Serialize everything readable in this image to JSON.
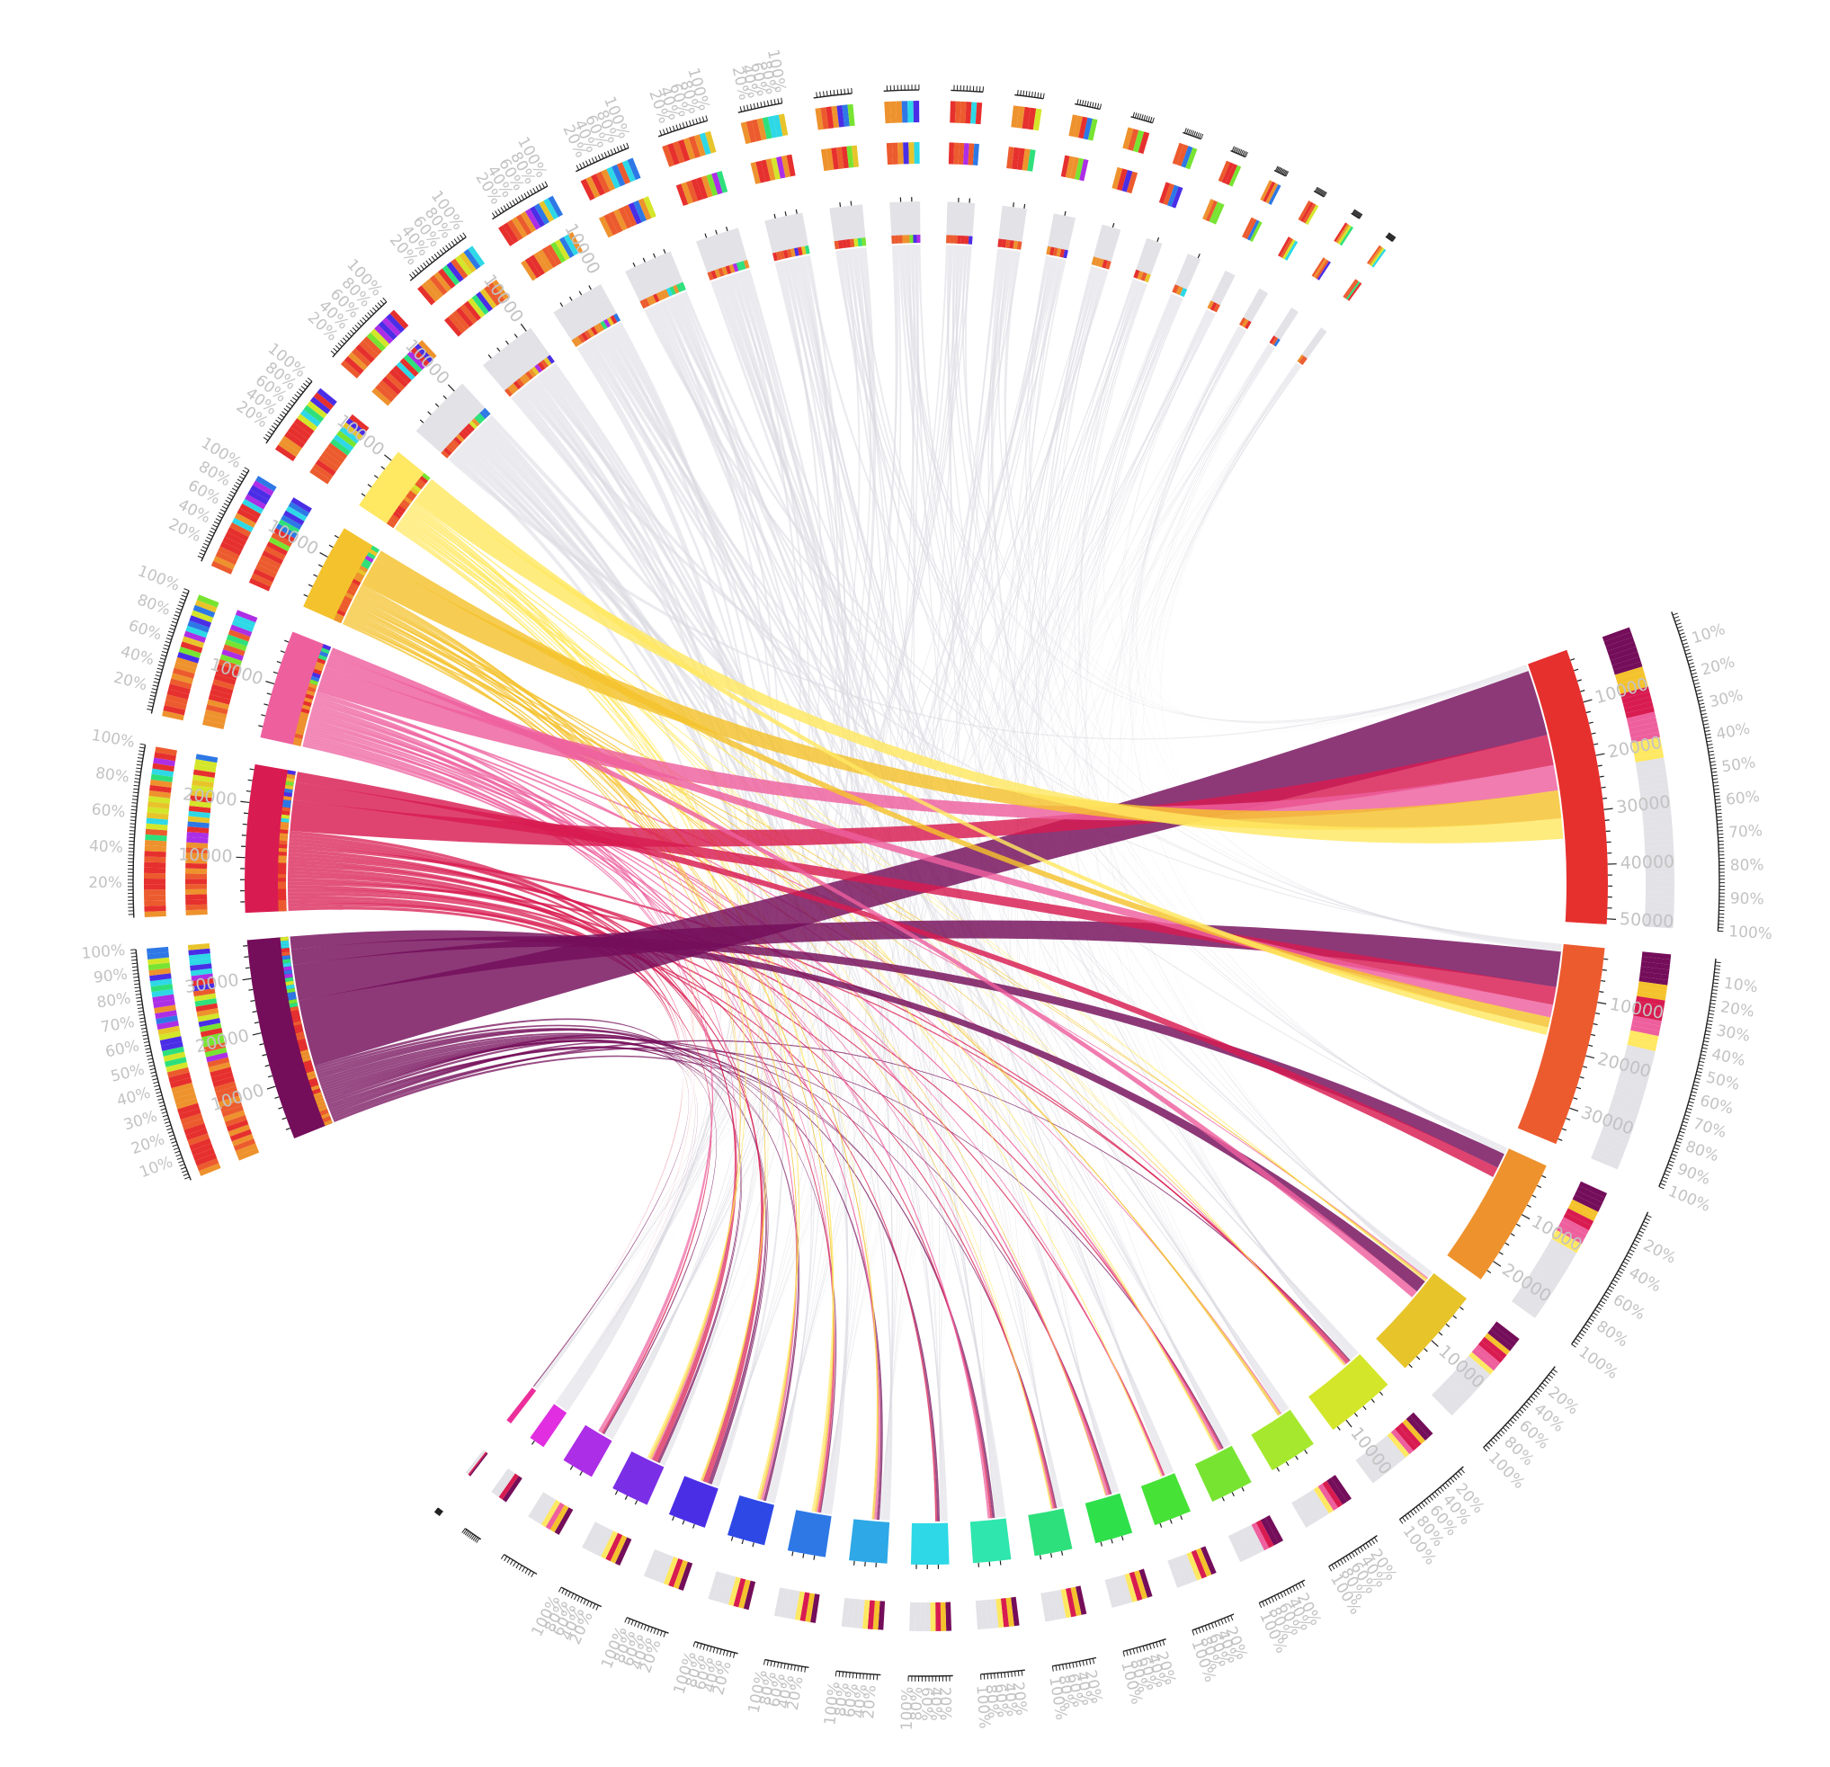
{
  "chart_data": {
    "type": "chord",
    "title": "",
    "colors": {
      "background": "#ffffff",
      "neutral_sector": "#e2e2e7",
      "neutral_ribbon": "#dadae2",
      "tick_label": "#c3c3c3"
    },
    "target_sectors": [
      {
        "id": "T1",
        "size": 51000,
        "color": "#e6302e",
        "tick_labels": [
          "10000",
          "20000",
          "30000",
          "40000",
          "50000"
        ],
        "ticks": [
          10000,
          20000,
          30000,
          40000,
          50000
        ]
      },
      {
        "id": "T2",
        "size": 37000,
        "color": "#ec5b2e",
        "tick_labels": [
          "10000",
          "20000",
          "30000"
        ],
        "ticks": [
          10000,
          20000,
          30000
        ]
      },
      {
        "id": "T3",
        "size": 24000,
        "color": "#ee922d",
        "tick_labels": [
          "10000",
          "20000"
        ],
        "ticks": [
          10000,
          20000
        ]
      },
      {
        "id": "T4",
        "size": 17000,
        "color": "#e8c42b",
        "tick_labels": [
          "10000"
        ],
        "ticks": [
          10000
        ]
      },
      {
        "id": "T5",
        "size": 13000,
        "color": "#d4e62a",
        "tick_labels": [
          "10000"
        ],
        "ticks": [
          10000
        ]
      },
      {
        "id": "T6",
        "size": 9000,
        "color": "#a6e82e",
        "tick_labels": [],
        "ticks": []
      },
      {
        "id": "T7",
        "size": 8000,
        "color": "#78e432",
        "tick_labels": [],
        "ticks": []
      },
      {
        "id": "T8",
        "size": 7000,
        "color": "#46e236",
        "tick_labels": [],
        "ticks": []
      },
      {
        "id": "T9",
        "size": 7000,
        "color": "#2ee04a",
        "tick_labels": [],
        "ticks": []
      },
      {
        "id": "T10",
        "size": 7000,
        "color": "#2ee07c",
        "tick_labels": [],
        "ticks": []
      },
      {
        "id": "T11",
        "size": 7000,
        "color": "#2ee6ae",
        "tick_labels": [],
        "ticks": []
      },
      {
        "id": "T12",
        "size": 7000,
        "color": "#2ed8e6",
        "tick_labels": [],
        "ticks": []
      },
      {
        "id": "T13",
        "size": 7000,
        "color": "#2ea8e6",
        "tick_labels": [],
        "ticks": []
      },
      {
        "id": "T14",
        "size": 7000,
        "color": "#2e78e6",
        "tick_labels": [],
        "ticks": []
      },
      {
        "id": "T15",
        "size": 7000,
        "color": "#2e48e6",
        "tick_labels": [],
        "ticks": []
      },
      {
        "id": "T16",
        "size": 7000,
        "color": "#4a2ee6",
        "tick_labels": [],
        "ticks": []
      },
      {
        "id": "T17",
        "size": 7000,
        "color": "#7a2ee6",
        "tick_labels": [],
        "ticks": []
      },
      {
        "id": "T18",
        "size": 6000,
        "color": "#ac2ee6",
        "tick_labels": [],
        "ticks": []
      },
      {
        "id": "T19",
        "size": 3000,
        "color": "#e02ee0",
        "tick_labels": [],
        "ticks": []
      },
      {
        "id": "T20",
        "size": 1000,
        "color": "#ec2e9a",
        "tick_labels": [],
        "ticks": []
      }
    ],
    "source_sectors": [
      {
        "id": "S1",
        "size": 37000,
        "color": "#740d5a",
        "tick_labels": [
          "10000",
          "20000",
          "30000"
        ],
        "ticks": [
          10000,
          20000,
          30000
        ]
      },
      {
        "id": "S2",
        "size": 27000,
        "color": "#d81b50",
        "tick_labels": [
          "10000",
          "20000"
        ],
        "ticks": [
          10000,
          20000
        ]
      },
      {
        "id": "S3",
        "size": 20000,
        "color": "#ee5f9d",
        "tick_labels": [
          "10000"
        ],
        "ticks": [
          10000
        ]
      },
      {
        "id": "S4",
        "size": 16000,
        "color": "#f4c22c",
        "tick_labels": [
          "10000"
        ],
        "ticks": [
          10000
        ]
      },
      {
        "id": "S5",
        "size": 12000,
        "color": "#ffe862",
        "tick_labels": [
          "10000"
        ],
        "ticks": [
          10000
        ]
      },
      {
        "id": "S6",
        "size": 12000,
        "color": "#e2e2e7",
        "tick_labels": [
          "10000"
        ],
        "ticks": [
          10000
        ]
      },
      {
        "id": "S7",
        "size": 11000,
        "color": "#e2e2e7",
        "tick_labels": [
          "10000"
        ],
        "ticks": [
          10000
        ]
      },
      {
        "id": "S8",
        "size": 10000,
        "color": "#e2e2e7",
        "tick_labels": [
          "10000"
        ],
        "ticks": [
          10000
        ]
      },
      {
        "id": "S9",
        "size": 9000,
        "color": "#e2e2e7",
        "tick_labels": [],
        "ticks": []
      },
      {
        "id": "S10",
        "size": 8000,
        "color": "#e2e2e7",
        "tick_labels": [],
        "ticks": []
      },
      {
        "id": "S11",
        "size": 7000,
        "color": "#e2e2e7",
        "tick_labels": [],
        "ticks": []
      },
      {
        "id": "S12",
        "size": 6000,
        "color": "#e2e2e7",
        "tick_labels": [],
        "ticks": []
      },
      {
        "id": "S13",
        "size": 5500,
        "color": "#e2e2e7",
        "tick_labels": [],
        "ticks": []
      },
      {
        "id": "S14",
        "size": 5000,
        "color": "#e2e2e7",
        "tick_labels": [],
        "ticks": []
      },
      {
        "id": "S15",
        "size": 4500,
        "color": "#e2e2e7",
        "tick_labels": [],
        "ticks": []
      },
      {
        "id": "S16",
        "size": 4000,
        "color": "#e2e2e7",
        "tick_labels": [],
        "ticks": []
      },
      {
        "id": "S17",
        "size": 3500,
        "color": "#e2e2e7",
        "tick_labels": [],
        "ticks": []
      },
      {
        "id": "S18",
        "size": 3000,
        "color": "#e2e2e7",
        "tick_labels": [],
        "ticks": []
      },
      {
        "id": "S19",
        "size": 2500,
        "color": "#e2e2e7",
        "tick_labels": [],
        "ticks": []
      },
      {
        "id": "S20",
        "size": 2000,
        "color": "#e2e2e7",
        "tick_labels": [],
        "ticks": []
      },
      {
        "id": "S21",
        "size": 1800,
        "color": "#e2e2e7",
        "tick_labels": [],
        "ticks": []
      },
      {
        "id": "S22",
        "size": 1500,
        "color": "#e2e2e7",
        "tick_labels": [],
        "ticks": []
      },
      {
        "id": "S23",
        "size": 1300,
        "color": "#e2e2e7",
        "tick_labels": [],
        "ticks": []
      }
    ],
    "major_links": [
      {
        "source": "S1",
        "target": "T1",
        "value": 13000
      },
      {
        "source": "S1",
        "target": "T2",
        "value": 7000
      },
      {
        "source": "S1",
        "target": "T3",
        "value": 3000
      },
      {
        "source": "S1",
        "target": "T4",
        "value": 2500
      },
      {
        "source": "S2",
        "target": "T1",
        "value": 6000
      },
      {
        "source": "S2",
        "target": "T2",
        "value": 3500
      },
      {
        "source": "S2",
        "target": "T3",
        "value": 2000
      },
      {
        "source": "S3",
        "target": "T1",
        "value": 5000
      },
      {
        "source": "S3",
        "target": "T2",
        "value": 2500
      },
      {
        "source": "S3",
        "target": "T4",
        "value": 1500
      },
      {
        "source": "S4",
        "target": "T1",
        "value": 5500
      },
      {
        "source": "S4",
        "target": "T2",
        "value": 2000
      },
      {
        "source": "S5",
        "target": "T1",
        "value": 4000
      },
      {
        "source": "S5",
        "target": "T2",
        "value": 1500
      }
    ],
    "pct_ticks": [
      "10%",
      "20%",
      "30%",
      "40%",
      "50%",
      "60%",
      "70%",
      "80%",
      "90%",
      "100%"
    ],
    "source_pct_ticks": [
      "20%",
      "40%",
      "60%",
      "80%",
      "100%"
    ],
    "target_pct_ticks": [
      "20%",
      "40%",
      "60%",
      "80%",
      "100%"
    ],
    "spectrum_palette": [
      "#e6302e",
      "#ec5b2e",
      "#ee922d",
      "#e8c42b",
      "#d4e62a",
      "#78e432",
      "#2ee07c",
      "#2ed8e6",
      "#2e78e6",
      "#4a2ee6",
      "#ac2ee6"
    ],
    "composition_palette": [
      "#740d5a",
      "#d81b50",
      "#ee5f9d",
      "#f4c22c",
      "#ffe862",
      "#e2e2e7"
    ]
  }
}
